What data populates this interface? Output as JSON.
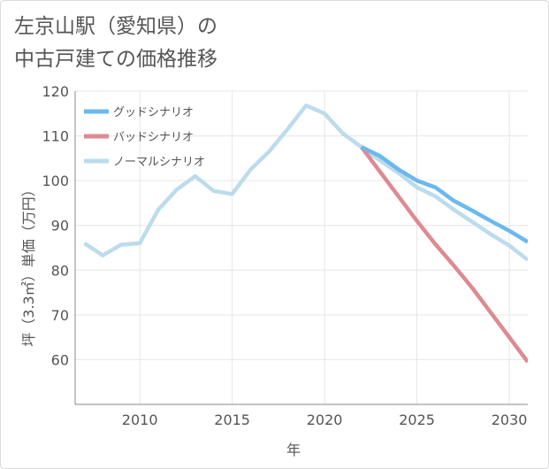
{
  "title_lines": [
    "左京山駅（愛知県）の",
    "中古戸建ての価格推移"
  ],
  "chart_data": {
    "type": "line",
    "title": "左京山駅（愛知県）の中古戸建ての価格推移",
    "xlabel": "年",
    "ylabel": "坪（3.3㎡）単価（万円）",
    "xlim": [
      2006.5,
      2031
    ],
    "ylim": [
      50,
      120
    ],
    "xticks": [
      "2010",
      "2015",
      "2020",
      "2025",
      "2030"
    ],
    "yticks": [
      "60",
      "70",
      "80",
      "90",
      "100",
      "110",
      "120"
    ],
    "legend_position": "top-left",
    "series": [
      {
        "name": "グッドシナリオ",
        "color": "#6cb8ee",
        "x": [
          2022,
          2023,
          2024,
          2025,
          2026,
          2027,
          2028,
          2029,
          2030,
          2031
        ],
        "y": [
          107.5,
          105.5,
          102.5,
          100,
          98.5,
          95.5,
          93.3,
          91,
          88.8,
          86.3
        ]
      },
      {
        "name": "バッドシナリオ",
        "color": "#dd8a91",
        "x": [
          2022,
          2023,
          2024,
          2025,
          2026,
          2027,
          2028,
          2029,
          2030,
          2031
        ],
        "y": [
          107.5,
          102,
          96.5,
          91,
          85.8,
          81,
          76,
          70.5,
          65,
          59.5
        ]
      },
      {
        "name": "ノーマルシナリオ",
        "color": "#bcdcec",
        "x": [
          2007,
          2008,
          2009,
          2010,
          2011,
          2012,
          2013,
          2014,
          2015,
          2016,
          2017,
          2018,
          2019,
          2020,
          2021,
          2022,
          2023,
          2024,
          2025,
          2026,
          2027,
          2028,
          2029,
          2030,
          2031
        ],
        "y": [
          86,
          83.3,
          85.7,
          86,
          93.5,
          98,
          101,
          97.7,
          97,
          102.5,
          106.5,
          111.5,
          116.8,
          115,
          110.5,
          107.5,
          104.5,
          101.7,
          98.5,
          96.5,
          93.5,
          90.8,
          88,
          85.5,
          82.3
        ]
      }
    ]
  }
}
